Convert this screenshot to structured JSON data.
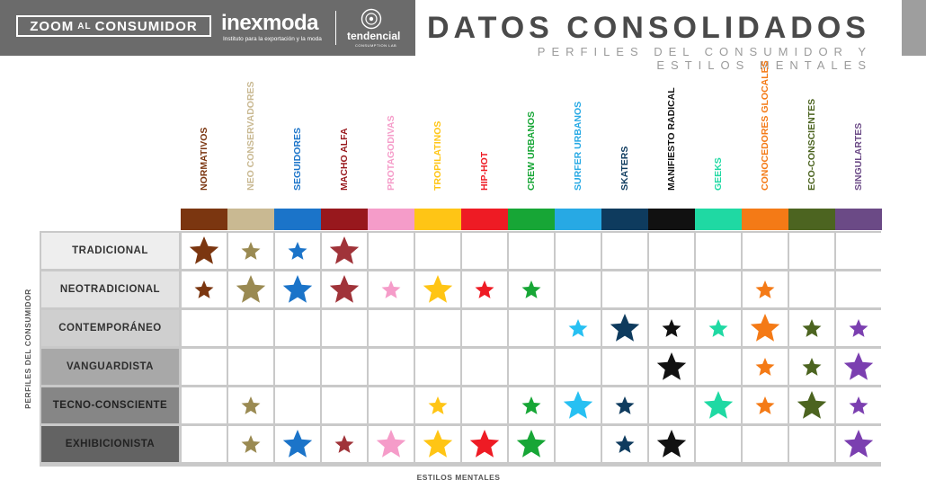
{
  "header": {
    "zoom_left": "ZOOM",
    "zoom_mid": "AL",
    "zoom_right": "CONSUMIDOR",
    "brand": "inexmoda",
    "brand_tagline": "Instituto para la exportación y la moda",
    "partner": "tendencial",
    "partner_tagline": "CONSUMPTION LAB"
  },
  "title": "DATOS CONSOLIDADOS",
  "subtitle": "PERFILES DEL CONSUMIDOR Y ESTILOS MENTALES",
  "axis": {
    "y_label": "PERFILES DEL CONSUMIDOR",
    "x_label": "ESTILOS MENTALES"
  },
  "columns": [
    {
      "label": "NORMATIVOS",
      "color": "#7b3610"
    },
    {
      "label": "NEO CONSERVADORES",
      "color": "#c9b992"
    },
    {
      "label": "SEGUIDORES",
      "color": "#1b74c9"
    },
    {
      "label": "MACHO ALFA",
      "color": "#98181d"
    },
    {
      "label": "PROTAGODIVAS",
      "color": "#f59cc9"
    },
    {
      "label": "TROPILATINOS",
      "color": "#ffc515"
    },
    {
      "label": "HIP-HOT",
      "color": "#ee1b24"
    },
    {
      "label": "CREW URBANOS",
      "color": "#17a636"
    },
    {
      "label": "SURFER URBANOS",
      "color": "#27a9e4"
    },
    {
      "label": "SKATERS",
      "color": "#0e3b5e"
    },
    {
      "label": "MANIFIESTO RADICAL",
      "color": "#111111"
    },
    {
      "label": "GEEKS",
      "color": "#1fd9a3"
    },
    {
      "label": "CONOCEDORES GLOCALES",
      "color": "#f47a16"
    },
    {
      "label": "ECO-CONSCIENTES",
      "color": "#4c6420"
    },
    {
      "label": "SINGULARTES",
      "color": "#6b4a86"
    }
  ],
  "star_colors": [
    "#7b3610",
    "#9a8a52",
    "#1b74c9",
    "#a03339",
    "#f59cc9",
    "#ffc515",
    "#ee1b24",
    "#17a636",
    "#27c0f2",
    "#0e3b5e",
    "#111111",
    "#1fd9a3",
    "#f47a16",
    "#4c6420",
    "#7b3fb0"
  ],
  "rows": [
    {
      "label": "TRADICIONAL",
      "bg": "#eeeeee",
      "fg": "#333333",
      "stars": [
        3,
        2,
        2,
        3,
        0,
        0,
        0,
        0,
        0,
        0,
        0,
        0,
        0,
        0,
        0
      ]
    },
    {
      "label": "NEOTRADICIONAL",
      "bg": "#e3e3e3",
      "fg": "#333333",
      "stars": [
        2,
        3,
        3,
        3,
        2,
        3,
        2,
        2,
        0,
        0,
        0,
        0,
        2,
        0,
        0
      ]
    },
    {
      "label": "CONTEMPORÁNEO",
      "bg": "#cfcfcf",
      "fg": "#333333",
      "stars": [
        0,
        0,
        0,
        0,
        0,
        0,
        0,
        0,
        2,
        3,
        2,
        2,
        3,
        2,
        2
      ]
    },
    {
      "label": "VANGUARDISTA",
      "bg": "#a8a8a8",
      "fg": "#2e2e2e",
      "stars": [
        0,
        0,
        0,
        0,
        0,
        0,
        0,
        0,
        0,
        0,
        3,
        0,
        2,
        2,
        3
      ]
    },
    {
      "label": "TECNO-CONSCIENTE",
      "bg": "#868686",
      "fg": "#222222",
      "stars": [
        0,
        2,
        0,
        0,
        0,
        2,
        0,
        2,
        3,
        2,
        0,
        3,
        2,
        3,
        2
      ]
    },
    {
      "label": "EXHIBICIONISTA",
      "bg": "#636363",
      "fg": "#222222",
      "stars": [
        0,
        2,
        3,
        2,
        3,
        3,
        3,
        3,
        0,
        2,
        3,
        0,
        0,
        0,
        3
      ]
    }
  ]
}
